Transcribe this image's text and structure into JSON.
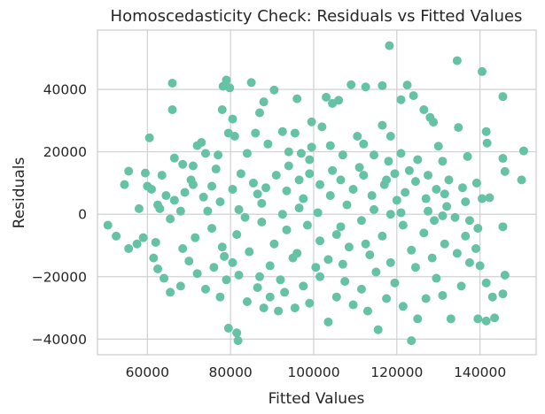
{
  "chart_data": {
    "type": "scatter",
    "title": "Homoscedasticity Check: Residuals vs Fitted Values",
    "xlabel": "Fitted Values",
    "ylabel": "Residuals",
    "xlim": [
      48000,
      153500
    ],
    "ylim": [
      -45000,
      59000
    ],
    "x_ticks": [
      60000,
      80000,
      100000,
      120000,
      140000
    ],
    "x_tick_labels": [
      "60000",
      "80000",
      "100000",
      "120000",
      "140000"
    ],
    "y_ticks": [
      -40000,
      -20000,
      0,
      20000,
      40000
    ],
    "y_tick_labels": [
      "−40000",
      "−20000",
      "0",
      "20000",
      "40000"
    ],
    "grid": true,
    "marker_color": "#66c2a5",
    "series": [
      {
        "points": [
          [
            118200,
            54000
          ],
          [
            134500,
            49200
          ],
          [
            66000,
            42000
          ],
          [
            79000,
            43000
          ],
          [
            85000,
            42200
          ],
          [
            78200,
            41000
          ],
          [
            79800,
            40500
          ],
          [
            90500,
            39800
          ],
          [
            109000,
            41500
          ],
          [
            112500,
            40800
          ],
          [
            116500,
            41200
          ],
          [
            122500,
            41400
          ],
          [
            140500,
            45700
          ],
          [
            145500,
            37700
          ],
          [
            96000,
            37000
          ],
          [
            103000,
            37500
          ],
          [
            104500,
            35500
          ],
          [
            106000,
            36500
          ],
          [
            121000,
            36700
          ],
          [
            124000,
            38000
          ],
          [
            88000,
            36000
          ],
          [
            87000,
            32500
          ],
          [
            78000,
            33500
          ],
          [
            66000,
            33500
          ],
          [
            80500,
            30500
          ],
          [
            99500,
            29600
          ],
          [
            102000,
            28000
          ],
          [
            116500,
            28500
          ],
          [
            128000,
            31000
          ],
          [
            126500,
            33500
          ],
          [
            128800,
            29500
          ],
          [
            141500,
            26500
          ],
          [
            134800,
            27800
          ],
          [
            73000,
            23000
          ],
          [
            72000,
            22000
          ],
          [
            79500,
            26000
          ],
          [
            81000,
            25000
          ],
          [
            86000,
            26000
          ],
          [
            92500,
            26500
          ],
          [
            95500,
            26000
          ],
          [
            110500,
            25000
          ],
          [
            118500,
            25000
          ],
          [
            121000,
            19500
          ],
          [
            130000,
            21800
          ],
          [
            141700,
            22800
          ],
          [
            137000,
            18500
          ],
          [
            131000,
            17000
          ],
          [
            145500,
            17900
          ],
          [
            150500,
            20300
          ],
          [
            146000,
            13700
          ],
          [
            150000,
            11000
          ],
          [
            139200,
            10000
          ],
          [
            135800,
            8500
          ],
          [
            140500,
            5000
          ],
          [
            142300,
            5300
          ],
          [
            55500,
            13800
          ],
          [
            59500,
            13200
          ],
          [
            54500,
            9500
          ],
          [
            61000,
            8000
          ],
          [
            63500,
            12500
          ],
          [
            64500,
            6000
          ],
          [
            62500,
            3000
          ],
          [
            60500,
            24500
          ],
          [
            60000,
            9000
          ],
          [
            66500,
            18000
          ],
          [
            68500,
            16000
          ],
          [
            71000,
            15500
          ],
          [
            74000,
            19500
          ],
          [
            77000,
            19000
          ],
          [
            84000,
            19500
          ],
          [
            89000,
            22500
          ],
          [
            94000,
            20000
          ],
          [
            97000,
            19500
          ],
          [
            99000,
            17500
          ],
          [
            104000,
            22000
          ],
          [
            107000,
            19000
          ],
          [
            112000,
            22500
          ],
          [
            114500,
            19000
          ],
          [
            118000,
            17000
          ],
          [
            125000,
            17500
          ],
          [
            127500,
            12500
          ],
          [
            132500,
            11000
          ],
          [
            131500,
            6500
          ],
          [
            136500,
            4000
          ],
          [
            58000,
            1800
          ],
          [
            63000,
            1800
          ],
          [
            65500,
            -1500
          ],
          [
            66500,
            4500
          ],
          [
            69000,
            7000
          ],
          [
            70500,
            11000
          ],
          [
            73500,
            5500
          ],
          [
            75500,
            9000
          ],
          [
            77500,
            4000
          ],
          [
            80500,
            8000
          ],
          [
            82500,
            13000
          ],
          [
            85500,
            10000
          ],
          [
            88500,
            8500
          ],
          [
            91000,
            12500
          ],
          [
            93500,
            7500
          ],
          [
            96500,
            11000
          ],
          [
            99000,
            13000
          ],
          [
            101500,
            9500
          ],
          [
            104000,
            6000
          ],
          [
            106500,
            11000
          ],
          [
            109500,
            8000
          ],
          [
            112000,
            12500
          ],
          [
            114000,
            6000
          ],
          [
            117000,
            9500
          ],
          [
            119500,
            13000
          ],
          [
            122000,
            7000
          ],
          [
            124500,
            10500
          ],
          [
            127000,
            5000
          ],
          [
            129500,
            8000
          ],
          [
            132000,
            2500
          ],
          [
            134000,
            -1000
          ],
          [
            137500,
            -2000
          ],
          [
            139500,
            -4500
          ],
          [
            50500,
            -3500
          ],
          [
            52500,
            -7000
          ],
          [
            55500,
            -11000
          ],
          [
            57500,
            -9500
          ],
          [
            59000,
            -7500
          ],
          [
            61500,
            -14000
          ],
          [
            62500,
            -17500
          ],
          [
            64000,
            -20500
          ],
          [
            65500,
            -25000
          ],
          [
            68000,
            -23000
          ],
          [
            70000,
            -15000
          ],
          [
            72000,
            -19000
          ],
          [
            74000,
            -24000
          ],
          [
            76000,
            -17000
          ],
          [
            77500,
            -26500
          ],
          [
            79000,
            -21000
          ],
          [
            80500,
            -15500
          ],
          [
            82000,
            -19500
          ],
          [
            84000,
            -28000
          ],
          [
            86500,
            -23500
          ],
          [
            88000,
            -30000
          ],
          [
            89500,
            -26500
          ],
          [
            91500,
            -31000
          ],
          [
            93000,
            -25000
          ],
          [
            95500,
            -30000
          ],
          [
            97500,
            -23000
          ],
          [
            99000,
            -28500
          ],
          [
            101500,
            -20000
          ],
          [
            103500,
            -34500
          ],
          [
            105500,
            -26500
          ],
          [
            107500,
            -21500
          ],
          [
            109500,
            -29000
          ],
          [
            111500,
            -24000
          ],
          [
            113000,
            -31000
          ],
          [
            115500,
            -37000
          ],
          [
            117500,
            -27000
          ],
          [
            119500,
            -22000
          ],
          [
            121500,
            -29500
          ],
          [
            123500,
            -40500
          ],
          [
            125000,
            -33500
          ],
          [
            127000,
            -27000
          ],
          [
            129500,
            -20500
          ],
          [
            131000,
            -26000
          ],
          [
            133000,
            -33500
          ],
          [
            135500,
            -23000
          ],
          [
            137500,
            -15500
          ],
          [
            140000,
            -16500
          ],
          [
            141500,
            -22000
          ],
          [
            143000,
            -26500
          ],
          [
            139500,
            -33500
          ],
          [
            141500,
            -34200
          ],
          [
            143500,
            -33200
          ],
          [
            79500,
            -36500
          ],
          [
            81500,
            -38000
          ],
          [
            81800,
            -40500
          ],
          [
            68500,
            -11000
          ],
          [
            71500,
            -7500
          ],
          [
            75500,
            -4500
          ],
          [
            78000,
            -10500
          ],
          [
            81500,
            -6500
          ],
          [
            84500,
            -12000
          ],
          [
            87500,
            -2500
          ],
          [
            90500,
            -9500
          ],
          [
            93500,
            -5000
          ],
          [
            96000,
            -12500
          ],
          [
            98500,
            -3500
          ],
          [
            101500,
            -8500
          ],
          [
            103500,
            -14500
          ],
          [
            106500,
            -4000
          ],
          [
            108500,
            -10500
          ],
          [
            111500,
            -2000
          ],
          [
            113500,
            -13000
          ],
          [
            116500,
            -7000
          ],
          [
            118500,
            -15500
          ],
          [
            121500,
            -3500
          ],
          [
            123500,
            -11500
          ],
          [
            126500,
            -6000
          ],
          [
            128500,
            -14000
          ],
          [
            131500,
            -9500
          ],
          [
            134500,
            -12500
          ],
          [
            136500,
            -7000
          ],
          [
            145500,
            -4000
          ],
          [
            146000,
            -19500
          ],
          [
            145500,
            -25500
          ],
          [
            139000,
            -11000
          ],
          [
            118500,
            0
          ],
          [
            92500,
            0
          ],
          [
            74500,
            1000
          ],
          [
            87500,
            3500
          ],
          [
            96500,
            2000
          ],
          [
            101000,
            500
          ],
          [
            108000,
            3000
          ],
          [
            114500,
            1500
          ],
          [
            121000,
            500
          ],
          [
            127500,
            1000
          ],
          [
            131000,
            -500
          ],
          [
            83500,
            -1000
          ],
          [
            62000,
            -9000
          ],
          [
            76500,
            14500
          ],
          [
            94000,
            15500
          ],
          [
            111000,
            15000
          ],
          [
            123000,
            14000
          ],
          [
            100500,
            -17000
          ],
          [
            89500,
            -16500
          ],
          [
            115000,
            -18500
          ],
          [
            71000,
            9500
          ],
          [
            86500,
            6500
          ],
          [
            120000,
            4500
          ],
          [
            97500,
            5000
          ],
          [
            105500,
            -6500
          ],
          [
            112500,
            -9500
          ],
          [
            92000,
            -21000
          ],
          [
            82000,
            1500
          ],
          [
            68000,
            1000
          ],
          [
            124500,
            -17000
          ],
          [
            129000,
            -2000
          ],
          [
            104500,
            14000
          ],
          [
            95000,
            -14000
          ],
          [
            117500,
            11000
          ],
          [
            78500,
            -13500
          ],
          [
            107000,
            -16000
          ],
          [
            87000,
            -20000
          ],
          [
            99500,
            21500
          ]
        ]
      }
    ]
  }
}
